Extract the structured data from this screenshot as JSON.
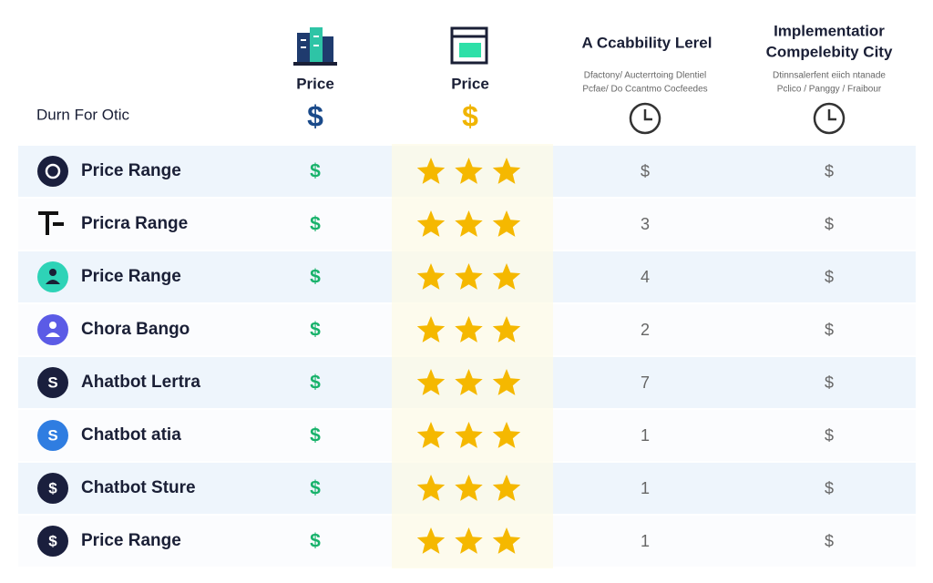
{
  "header": {
    "corner": "Durn For Otic",
    "columns": [
      {
        "title": "Price",
        "symbol": "$"
      },
      {
        "title": "Price",
        "symbol": "$"
      },
      {
        "title": "A Ccabbility Lerel",
        "subtitle": [
          "Dfactony/ Aucterrtoing Dlentiel",
          "Pcfae/ Do Ccantmo Cocfeedes"
        ]
      },
      {
        "title": [
          "Implementatior",
          "Compelebity City"
        ],
        "subtitle": [
          "Dtinnsalerfent eiich ntanade",
          "Pclico / Panggy / Fraibour"
        ]
      }
    ]
  },
  "rows": [
    {
      "name": "Price Range",
      "price": "$",
      "rating": 3,
      "level": "$",
      "complexity": "$"
    },
    {
      "name": "Pricra Range",
      "price": "$",
      "rating": 3,
      "level": "3",
      "complexity": "$"
    },
    {
      "name": "Price Range",
      "price": "$",
      "rating": 3,
      "level": "4",
      "complexity": "$"
    },
    {
      "name": "Chora Bango",
      "price": "$",
      "rating": 3,
      "level": "2",
      "complexity": "$"
    },
    {
      "icon": "S",
      "name": "Ahatbot Lertra",
      "price": "$",
      "rating": 3,
      "level": "7",
      "complexity": "$"
    },
    {
      "icon": "S",
      "name": "Chatbot atia",
      "price": "$",
      "rating": 3,
      "level": "1",
      "complexity": "$"
    },
    {
      "icon": "$",
      "name": "Chatbot Sture",
      "price": "$",
      "rating": 3,
      "level": "1",
      "complexity": "$"
    },
    {
      "icon": "$",
      "name": "Price Range",
      "price": "$",
      "rating": 3,
      "level": "1",
      "complexity": "$"
    }
  ]
}
